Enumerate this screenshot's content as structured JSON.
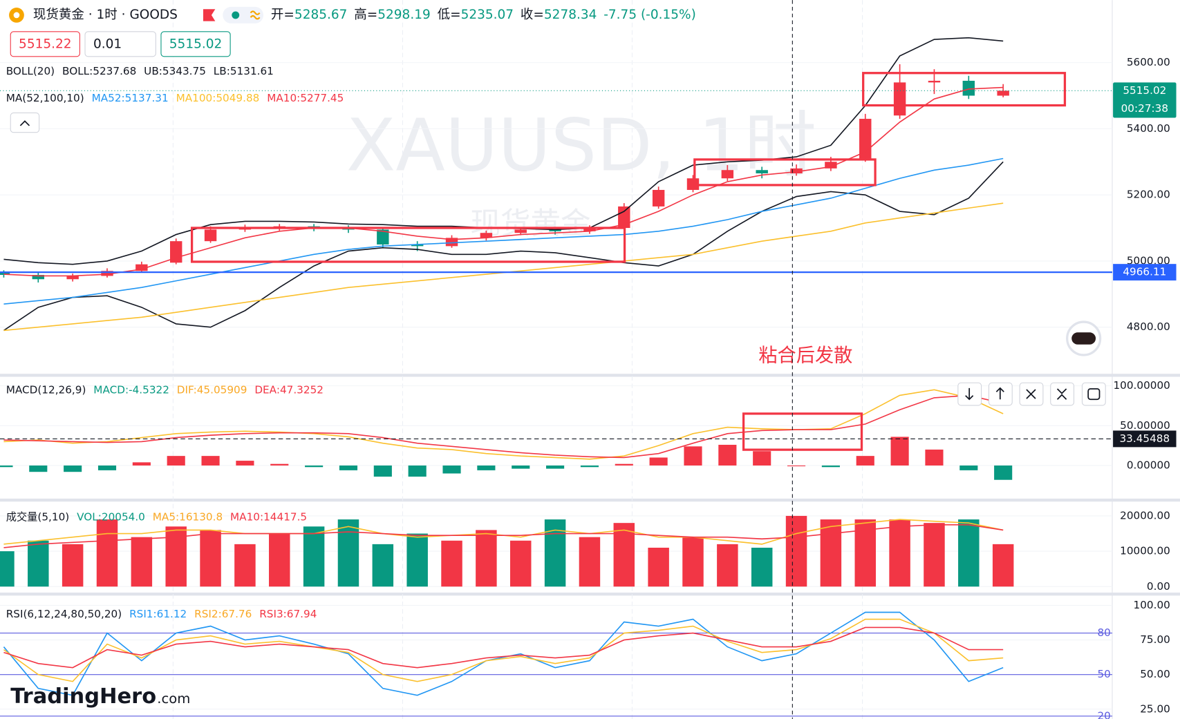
{
  "header": {
    "title": "现货黄金 · 1时 · GOODS",
    "ohlc": [
      {
        "label": "开=",
        "value": "5285.67"
      },
      {
        "label": "高=",
        "value": "5298.19"
      },
      {
        "label": "低=",
        "value": "5235.07"
      },
      {
        "label": "收=",
        "value": "5278.34"
      }
    ],
    "change": "-7.75 (-0.15%)"
  },
  "order": {
    "sell": "5515.22",
    "qty": "0.01",
    "buy": "5515.02"
  },
  "watermark": {
    "symbol": "XAUUSD, 1时",
    "name": "现货黄金"
  },
  "annotation": "粘合后发散",
  "logo": {
    "brand": "TradingHero",
    "suffix": ".com"
  },
  "chart_data": [
    {
      "type": "candlestick",
      "colors": {
        "up": "#f23645",
        "down": "#089981"
      },
      "open": [
        4965,
        4958,
        4945,
        4955,
        4970,
        4995,
        5060,
        5095,
        5100,
        5105,
        5100,
        5095,
        5050,
        5045,
        5070,
        5085,
        5095,
        5090,
        5100,
        5165,
        5215,
        5250,
        5275,
        5265,
        5280,
        5310,
        5440,
        5540,
        5545,
        5500
      ],
      "high": [
        4972,
        4965,
        4962,
        4978,
        4998,
        5068,
        5105,
        5110,
        5112,
        5112,
        5108,
        5100,
        5060,
        5078,
        5092,
        5102,
        5100,
        5108,
        5175,
        5225,
        5260,
        5290,
        5285,
        5292,
        5315,
        5445,
        5595,
        5580,
        5560,
        5535
      ],
      "low": [
        4950,
        4935,
        4938,
        4950,
        4965,
        4990,
        5055,
        5088,
        5092,
        5090,
        5085,
        5040,
        5030,
        5040,
        5062,
        5078,
        5080,
        5082,
        5095,
        5158,
        5208,
        5242,
        5250,
        5258,
        5272,
        5300,
        5430,
        5505,
        5490,
        5495
      ],
      "close": [
        4958,
        4945,
        4955,
        4970,
        4990,
        5060,
        5095,
        5100,
        5105,
        5100,
        5095,
        5050,
        5045,
        5070,
        5085,
        5095,
        5090,
        5100,
        5165,
        5215,
        5250,
        5275,
        5265,
        5280,
        5300,
        5430,
        5540,
        5545,
        5500,
        5515
      ],
      "series": [
        {
          "color": "#131722",
          "values": [
            5005,
            4995,
            4990,
            5000,
            5030,
            5080,
            5110,
            5120,
            5120,
            5118,
            5112,
            5110,
            5105,
            5105,
            5100,
            5098,
            5095,
            5100,
            5150,
            5240,
            5290,
            5300,
            5305,
            5315,
            5350,
            5470,
            5620,
            5670,
            5675,
            5665
          ]
        },
        {
          "color": "#131722",
          "values": [
            4790,
            4860,
            4890,
            4895,
            4860,
            4810,
            4800,
            4850,
            4920,
            4985,
            5030,
            5040,
            5035,
            5020,
            5020,
            5030,
            5025,
            5010,
            4995,
            4985,
            5020,
            5090,
            5150,
            5195,
            5210,
            5200,
            5150,
            5140,
            5190,
            5300
          ]
        },
        {
          "color": "#2196f3",
          "values": [
            4870,
            4880,
            4890,
            4905,
            4920,
            4940,
            4960,
            4980,
            5000,
            5020,
            5035,
            5045,
            5050,
            5055,
            5060,
            5065,
            5070,
            5075,
            5080,
            5090,
            5105,
            5125,
            5150,
            5170,
            5190,
            5220,
            5250,
            5275,
            5290,
            5310
          ]
        },
        {
          "color": "#fbc02d",
          "values": [
            4790,
            4800,
            4810,
            4820,
            4830,
            4845,
            4860,
            4875,
            4890,
            4905,
            4920,
            4930,
            4940,
            4950,
            4960,
            4970,
            4980,
            4990,
            5000,
            5010,
            5020,
            5040,
            5060,
            5075,
            5090,
            5115,
            5130,
            5145,
            5160,
            5175
          ]
        },
        {
          "color": "#f23645",
          "values": [
            4960,
            4955,
            4955,
            4960,
            4975,
            5010,
            5040,
            5070,
            5090,
            5100,
            5100,
            5090,
            5075,
            5065,
            5070,
            5080,
            5085,
            5090,
            5110,
            5150,
            5200,
            5240,
            5260,
            5270,
            5285,
            5330,
            5420,
            5490,
            5520,
            5525
          ]
        }
      ],
      "ylim": [
        4659,
        5789
      ],
      "yticks": [
        {
          "value": 5600,
          "label": "5600.00"
        },
        {
          "value": 5400,
          "label": "5400.00"
        },
        {
          "value": 5200,
          "label": "5200.00"
        },
        {
          "value": 5000,
          "label": "5000.00"
        },
        {
          "value": 4800,
          "label": "4800.00"
        }
      ],
      "grid": true,
      "hlines": [
        {
          "value": 4966.11,
          "label": "4966.11",
          "color": "#2962ff"
        }
      ],
      "last_price": {
        "value": 5515.02,
        "label": "5515.02",
        "countdown": "00:27:38",
        "color": "#089981"
      },
      "legend": [
        [
          {
            "text": "BOLL(20)",
            "color": "#131722"
          },
          {
            "text": "BOLL:5237.68",
            "color": "#131722"
          },
          {
            "text": "UB:5343.75",
            "color": "#131722"
          },
          {
            "text": "LB:5131.61",
            "color": "#131722"
          }
        ],
        [
          {
            "text": "MA(52,100,10)",
            "color": "#131722"
          },
          {
            "text": "MA52:5137.31",
            "color": "#2196f3"
          },
          {
            "text": "MA100:5049.88",
            "color": "#fbc02d"
          },
          {
            "text": "MA10:5277.45",
            "color": "#f23645"
          }
        ]
      ]
    },
    {
      "type": "macd",
      "colors": {
        "up": "#f23645",
        "down": "#089981"
      },
      "values": [
        -2,
        -8,
        -8,
        -6,
        4,
        12,
        12,
        6,
        2,
        -2,
        -6,
        -14,
        -14,
        -10,
        -6,
        -4,
        -4,
        -2,
        2,
        10,
        24,
        26,
        18,
        0,
        -2,
        12,
        36,
        20,
        -6,
        -18
      ],
      "series": [
        {
          "color": "#fbc02d",
          "values": [
            30,
            32,
            28,
            30,
            35,
            40,
            42,
            43,
            42,
            40,
            36,
            28,
            22,
            20,
            15,
            12,
            10,
            8,
            12,
            25,
            40,
            48,
            46,
            45,
            46,
            65,
            88,
            95,
            85,
            65
          ]
        },
        {
          "color": "#f23645",
          "values": [
            32,
            31,
            30,
            29,
            30,
            35,
            38,
            40,
            41,
            41,
            40,
            35,
            28,
            24,
            20,
            16,
            13,
            11,
            10,
            15,
            28,
            40,
            44,
            45,
            45,
            52,
            70,
            85,
            88,
            78
          ]
        }
      ],
      "ylim": [
        -40.6,
        112.3
      ],
      "yticks": [
        {
          "value": 100,
          "label": "100.00000"
        },
        {
          "value": 50,
          "label": "50.00000"
        },
        {
          "value": 0,
          "label": "0.00000"
        }
      ],
      "grid": true,
      "hlines": [
        {
          "value": 33.45488,
          "label": "33.45488",
          "color": "#131722"
        }
      ],
      "legend": [
        [
          {
            "text": "MACD(12,26,9)",
            "color": "#131722"
          },
          {
            "text": "MACD:-4.5322",
            "color": "#089981"
          },
          {
            "text": "DIF:45.05909",
            "color": "#f9a825"
          },
          {
            "text": "DEA:47.3252",
            "color": "#f23645"
          }
        ]
      ]
    },
    {
      "type": "bar",
      "colors": {
        "up": "#f23645",
        "down": "#089981"
      },
      "values": [
        10000,
        13000,
        12000,
        19000,
        14000,
        17000,
        16000,
        12000,
        15000,
        17000,
        19000,
        12000,
        15000,
        13000,
        16000,
        13000,
        19000,
        14000,
        18000,
        11000,
        14000,
        12000,
        11000,
        20000,
        19000,
        19000,
        19000,
        18000,
        19000,
        12000
      ],
      "series": [
        {
          "color": "#fbc02d",
          "values": [
            12000,
            13000,
            14000,
            15000,
            15000,
            16000,
            16000,
            15000,
            15000,
            15000,
            17000,
            15000,
            14000,
            14500,
            15000,
            14000,
            16000,
            15000,
            16000,
            14000,
            14000,
            13000,
            12000,
            15000,
            17000,
            18000,
            19000,
            18500,
            18000,
            16000
          ]
        },
        {
          "color": "#f23645",
          "values": [
            11000,
            12000,
            12500,
            13000,
            13500,
            14000,
            15000,
            15000,
            15000,
            15000,
            15500,
            15000,
            14500,
            14500,
            14500,
            14500,
            15000,
            15000,
            15000,
            14500,
            14000,
            14000,
            13500,
            14000,
            15000,
            16000,
            17000,
            17500,
            17500,
            16000
          ]
        }
      ],
      "ylim": [
        0,
        23830
      ],
      "yticks": [
        {
          "value": 20000,
          "label": "20000.00"
        },
        {
          "value": 10000,
          "label": "10000.00"
        },
        {
          "value": 0,
          "label": "0.00"
        }
      ],
      "grid": true,
      "legend": [
        [
          {
            "text": "成交量(5,10)",
            "color": "#131722"
          },
          {
            "text": "VOL:20054.0",
            "color": "#089981"
          },
          {
            "text": "MA5:16130.8",
            "color": "#f9a825"
          },
          {
            "text": "MA10:14417.5",
            "color": "#f23645"
          }
        ]
      ]
    },
    {
      "type": "line",
      "series": [
        {
          "color": "#2196f3",
          "values": [
            70,
            40,
            35,
            80,
            60,
            80,
            85,
            75,
            78,
            72,
            65,
            40,
            35,
            45,
            60,
            65,
            55,
            60,
            88,
            85,
            90,
            70,
            60,
            65,
            80,
            95,
            95,
            75,
            45,
            55
          ]
        },
        {
          "color": "#fbc02d",
          "values": [
            68,
            50,
            45,
            72,
            62,
            75,
            78,
            72,
            74,
            70,
            66,
            50,
            45,
            50,
            60,
            63,
            58,
            62,
            80,
            82,
            85,
            74,
            66,
            68,
            76,
            90,
            90,
            80,
            60,
            62
          ]
        },
        {
          "color": "#f23645",
          "values": [
            66,
            58,
            55,
            68,
            64,
            72,
            74,
            70,
            72,
            70,
            68,
            58,
            55,
            58,
            62,
            64,
            62,
            64,
            75,
            78,
            80,
            75,
            70,
            70,
            74,
            84,
            84,
            80,
            68,
            68
          ]
        }
      ],
      "ylim": [
        18.5,
        102.7
      ],
      "yticks": [
        {
          "value": 100,
          "label": "100.00"
        },
        {
          "value": 75,
          "label": "75.00"
        },
        {
          "value": 50,
          "label": "50.00"
        },
        {
          "value": 25,
          "label": "25.00"
        }
      ],
      "grid": true,
      "bands": [
        80,
        50,
        20
      ],
      "band_color": "#5c5ce0",
      "legend": [
        [
          {
            "text": "RSI(6,12,24,80,50,20)",
            "color": "#131722"
          },
          {
            "text": "RSI1:61.12",
            "color": "#2196f3"
          },
          {
            "text": "RSI2:67.76",
            "color": "#f9a825"
          },
          {
            "text": "RSI3:67.94",
            "color": "#f23645"
          }
        ]
      ]
    }
  ]
}
